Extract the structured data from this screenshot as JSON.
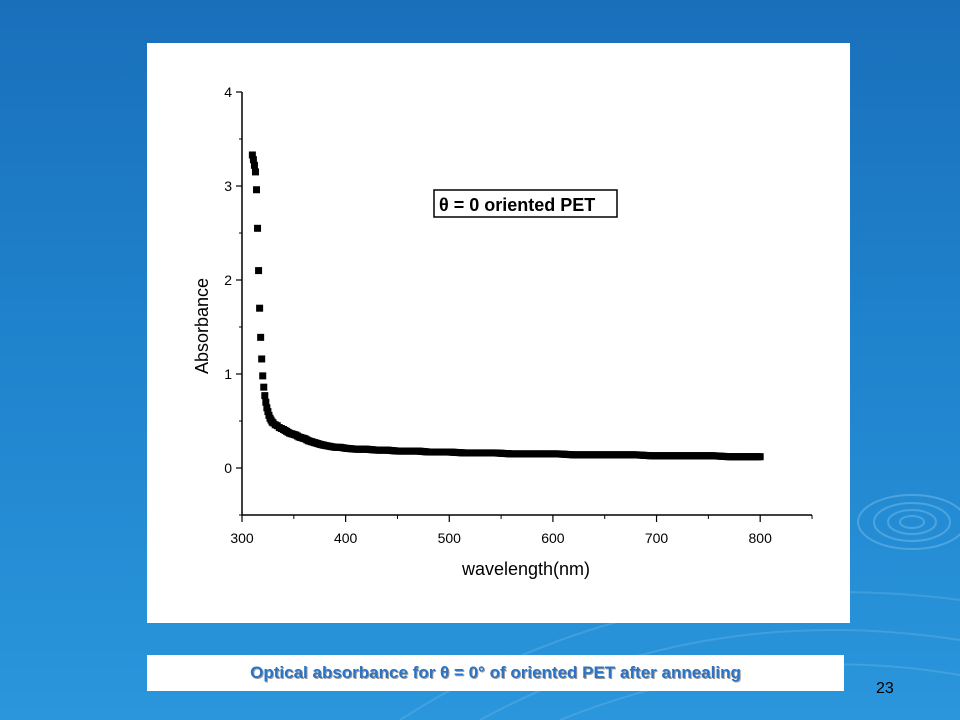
{
  "slide": {
    "number": "23"
  },
  "caption": {
    "text": "Optical absorbance for θ = 0° of oriented PET after annealing"
  },
  "colors": {
    "background": "#1f82cc",
    "caption_text": "#2a74c8",
    "markers": "#000000"
  },
  "chart_data": {
    "type": "scatter",
    "title": "",
    "xlabel": "wavelength(nm)",
    "ylabel": "Absorbance",
    "xlim": [
      300,
      850
    ],
    "ylim": [
      -0.5,
      4
    ],
    "xticks": [
      300,
      400,
      500,
      600,
      700,
      800
    ],
    "xtick_labels": [
      "300",
      "400",
      "500",
      "600",
      "700",
      "800"
    ],
    "yticks": [
      0,
      1,
      2,
      3,
      4
    ],
    "ytick_labels": [
      "0",
      "1",
      "2",
      "3",
      "4"
    ],
    "grid": false,
    "legend_position": "top-right",
    "series": [
      {
        "name": "θ = 0 oriented PET",
        "marker": "square",
        "x": [
          310,
          311,
          312,
          313,
          314,
          315,
          316,
          317,
          318,
          319,
          320,
          321,
          322,
          323,
          324,
          325,
          326,
          327,
          328,
          329,
          330,
          332,
          334,
          336,
          338,
          340,
          343,
          346,
          349,
          352,
          355,
          358,
          361,
          364,
          367,
          370,
          373,
          376,
          380,
          385,
          390,
          395,
          400,
          410,
          420,
          430,
          440,
          450,
          460,
          470,
          480,
          490,
          500,
          515,
          530,
          545,
          560,
          575,
          590,
          605,
          620,
          635,
          650,
          665,
          680,
          695,
          710,
          725,
          740,
          755,
          770,
          785,
          800
        ],
        "y": [
          3.33,
          3.28,
          3.22,
          3.15,
          2.96,
          2.55,
          2.1,
          1.7,
          1.39,
          1.16,
          0.98,
          0.86,
          0.77,
          0.7,
          0.64,
          0.6,
          0.56,
          0.53,
          0.51,
          0.49,
          0.48,
          0.46,
          0.45,
          0.43,
          0.42,
          0.41,
          0.39,
          0.37,
          0.36,
          0.35,
          0.33,
          0.32,
          0.31,
          0.29,
          0.28,
          0.27,
          0.26,
          0.25,
          0.24,
          0.23,
          0.22,
          0.22,
          0.21,
          0.2,
          0.2,
          0.19,
          0.19,
          0.18,
          0.18,
          0.18,
          0.17,
          0.17,
          0.17,
          0.16,
          0.16,
          0.16,
          0.15,
          0.15,
          0.15,
          0.15,
          0.14,
          0.14,
          0.14,
          0.14,
          0.14,
          0.13,
          0.13,
          0.13,
          0.13,
          0.13,
          0.12,
          0.12,
          0.12
        ]
      }
    ]
  }
}
